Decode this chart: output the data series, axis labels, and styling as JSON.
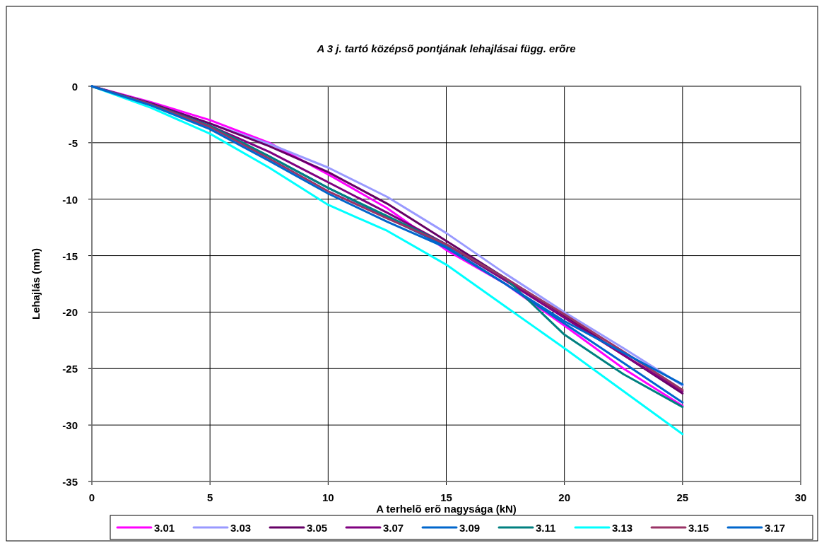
{
  "chart_data": {
    "type": "line",
    "title": "A 3 j. tartó középsõ pontjának lehajlásai függ. erõre",
    "xlabel": "A terhelõ erõ nagysága (kN)",
    "ylabel": "Lehajlás (mm)",
    "xlim": [
      0,
      30
    ],
    "xticks": [
      0,
      5,
      10,
      15,
      20,
      25,
      30
    ],
    "ylim": [
      -35,
      0
    ],
    "yticks": [
      -35,
      -30,
      -25,
      -20,
      -15,
      -10,
      -5,
      0
    ],
    "grid": true,
    "legend": "bottom",
    "marker": "none",
    "line_style": "solid",
    "x": [
      0,
      2.5,
      5,
      7.5,
      10,
      12.5,
      15,
      17.5,
      20,
      22.5,
      25
    ],
    "series": [
      {
        "name": "3.01",
        "color": "#ff00ff",
        "values": [
          0,
          -1.4,
          -3.0,
          -5.0,
          -7.8,
          -10.8,
          -14.5,
          -17.5,
          -21.2,
          -25.0,
          -28.3
        ]
      },
      {
        "name": "3.03",
        "color": "#9999ff",
        "values": [
          0,
          -1.5,
          -3.3,
          -5.1,
          -7.2,
          -9.8,
          -13.0,
          -16.6,
          -20.0,
          -23.2,
          -26.5
        ]
      },
      {
        "name": "3.05",
        "color": "#660066",
        "values": [
          0,
          -1.5,
          -3.3,
          -5.3,
          -7.6,
          -10.4,
          -13.7,
          -17.0,
          -20.3,
          -23.8,
          -27.2
        ]
      },
      {
        "name": "3.07",
        "color": "#800080",
        "values": [
          0,
          -1.6,
          -3.5,
          -5.8,
          -8.5,
          -11.2,
          -14.0,
          -17.2,
          -20.5,
          -23.8,
          -27.0
        ]
      },
      {
        "name": "3.09",
        "color": "#0066cc",
        "values": [
          0,
          -1.6,
          -3.6,
          -6.2,
          -9.0,
          -11.6,
          -14.2,
          -17.5,
          -21.0,
          -24.5,
          -28.0
        ]
      },
      {
        "name": "3.11",
        "color": "#008080",
        "values": [
          0,
          -1.6,
          -3.5,
          -6.2,
          -9.0,
          -11.5,
          -14.0,
          -17.0,
          -22.0,
          -25.5,
          -28.4
        ]
      },
      {
        "name": "3.13",
        "color": "#00ffff",
        "values": [
          0,
          -1.9,
          -4.2,
          -7.2,
          -10.5,
          -12.8,
          -15.8,
          -19.5,
          -23.2,
          -27.0,
          -30.8
        ]
      },
      {
        "name": "3.15",
        "color": "#993366",
        "values": [
          0,
          -1.6,
          -3.6,
          -6.4,
          -9.3,
          -11.7,
          -14.0,
          -17.0,
          -20.2,
          -23.5,
          -26.9
        ]
      },
      {
        "name": "3.17",
        "color": "#0066cc",
        "values": [
          0,
          -1.7,
          -3.8,
          -6.6,
          -9.5,
          -12.0,
          -14.3,
          -17.5,
          -20.8,
          -23.6,
          -26.4
        ]
      }
    ]
  }
}
